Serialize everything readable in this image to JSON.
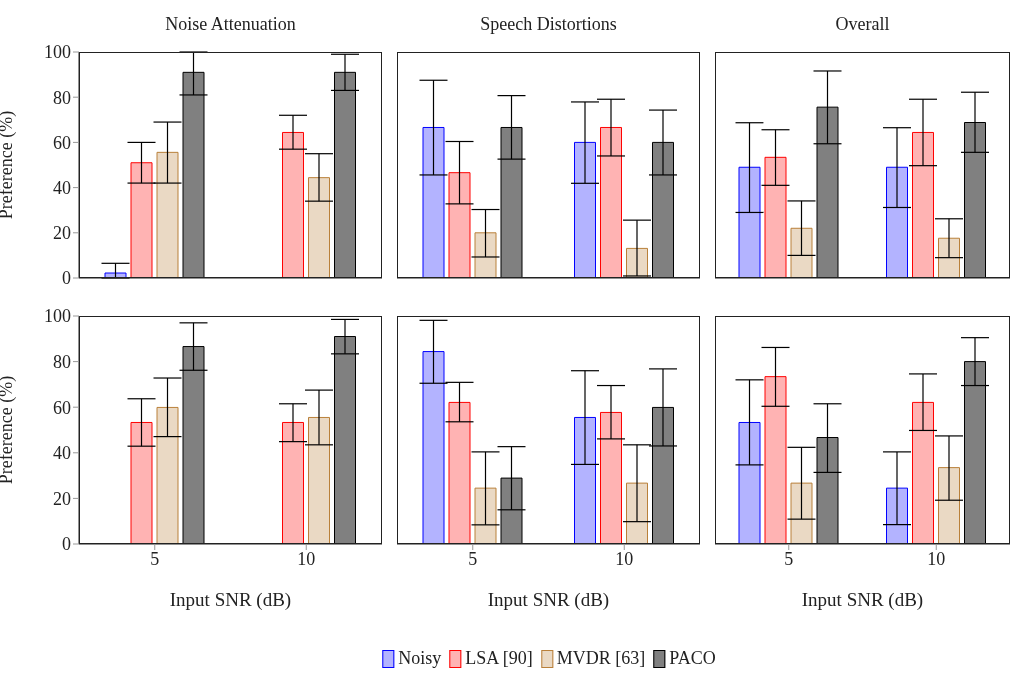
{
  "chart_data": [
    {
      "type": "bar",
      "title": "Noise Attenuation",
      "ylabel": "Preference (%)",
      "categories": [
        "5",
        "10"
      ],
      "ylim": [
        0,
        100
      ],
      "yticks": [
        0,
        20,
        40,
        60,
        80,
        100
      ],
      "tick_labels": "y",
      "series": [
        {
          "color": "#b3b3ff",
          "values": [
            2.2,
            0
          ],
          "errors": [
            [
              0,
              6.5
            ],
            null
          ]
        },
        {
          "color": "#ffb3b3",
          "values": [
            51,
            64.4
          ],
          "errors": [
            [
              42,
              60
            ],
            [
              57,
              72
            ]
          ]
        },
        {
          "color": "#ead9c4",
          "values": [
            55.6,
            44.4
          ],
          "errors": [
            [
              42,
              69
            ],
            [
              34,
              55
            ]
          ]
        },
        {
          "color": "#808080",
          "values": [
            91,
            91
          ],
          "errors": [
            [
              81,
              100
            ],
            [
              83,
              99
            ]
          ]
        }
      ]
    },
    {
      "type": "bar",
      "title": "Speech Distortions",
      "categories": [
        "5",
        "10"
      ],
      "ylim": [
        0,
        100
      ],
      "yticks": [
        0,
        20,
        40,
        60,
        80,
        100
      ],
      "tick_labels": false,
      "series": [
        {
          "color": "#b3b3ff",
          "values": [
            66.6,
            60
          ],
          "errors": [
            [
              45.6,
              87.5
            ],
            [
              41.9,
              77.9
            ]
          ]
        },
        {
          "color": "#ffb3b3",
          "values": [
            46.6,
            66.6
          ],
          "errors": [
            [
              32.8,
              60.4
            ],
            [
              54,
              79.1
            ]
          ]
        },
        {
          "color": "#ead9c4",
          "values": [
            20,
            13.1
          ],
          "errors": [
            [
              9.3,
              30.3
            ],
            [
              0.9,
              25.6
            ]
          ]
        },
        {
          "color": "#808080",
          "values": [
            66.6,
            60
          ],
          "errors": [
            [
              52.6,
              80.7
            ],
            [
              45.6,
              74.3
            ]
          ]
        }
      ]
    },
    {
      "type": "bar",
      "title": "Overall",
      "categories": [
        "5",
        "10"
      ],
      "ylim": [
        0,
        100
      ],
      "yticks": [
        0,
        20,
        40,
        60,
        80,
        100
      ],
      "tick_labels": false,
      "series": [
        {
          "color": "#b3b3ff",
          "values": [
            49,
            49
          ],
          "errors": [
            [
              29,
              68.7
            ],
            [
              31.2,
              66.5
            ]
          ]
        },
        {
          "color": "#ffb3b3",
          "values": [
            53.4,
            64.4
          ],
          "errors": [
            [
              41,
              65.6
            ],
            [
              49.7,
              79.1
            ]
          ]
        },
        {
          "color": "#ead9c4",
          "values": [
            22,
            17.6
          ],
          "errors": [
            [
              10,
              34.1
            ],
            [
              9,
              26.2
            ]
          ]
        },
        {
          "color": "#808080",
          "values": [
            75.6,
            68.8
          ],
          "errors": [
            [
              59.4,
              91.6
            ],
            [
              55.6,
              82.2
            ]
          ]
        }
      ]
    },
    {
      "type": "bar",
      "xlabel": "Input SNR (dB)",
      "ylabel": "Preference (%)",
      "categories": [
        "5",
        "10"
      ],
      "ylim": [
        0,
        100
      ],
      "yticks": [
        0,
        20,
        40,
        60,
        80,
        100
      ],
      "series": [
        {
          "color": "#b3b3ff",
          "values": [
            0,
            0
          ],
          "errors": [
            null,
            null
          ]
        },
        {
          "color": "#ffb3b3",
          "values": [
            53.3,
            53.3
          ],
          "errors": [
            [
              42.9,
              63.7
            ],
            [
              44.9,
              61.5
            ]
          ]
        },
        {
          "color": "#ead9c4",
          "values": [
            59.9,
            55.5
          ],
          "errors": [
            [
              47.1,
              72.8
            ],
            [
              43.5,
              67.5
            ]
          ]
        },
        {
          "color": "#808080",
          "values": [
            86.6,
            91
          ],
          "errors": [
            [
              76.2,
              97
            ],
            [
              83.4,
              98.5
            ]
          ]
        }
      ]
    },
    {
      "type": "bar",
      "xlabel": "Input SNR (dB)",
      "categories": [
        "5",
        "10"
      ],
      "ylim": [
        0,
        100
      ],
      "yticks": [
        0,
        20,
        40,
        60,
        80,
        100
      ],
      "tick_labels": "x",
      "legend": "bottom",
      "series": [
        {
          "name": "Noisy",
          "color": "#b3b3ff",
          "values": [
            84.4,
            55.5
          ],
          "errors": [
            [
              70.5,
              98.1
            ],
            [
              34.9,
              76
            ]
          ]
        },
        {
          "name": "LSA [90]",
          "color": "#ffb3b3",
          "values": [
            62.1,
            57.7
          ],
          "errors": [
            [
              53.6,
              70.9
            ],
            [
              46.1,
              69.5
            ]
          ]
        },
        {
          "name": "MVDR [63]",
          "color": "#ead9c4",
          "values": [
            24.5,
            26.7
          ],
          "errors": [
            [
              8.4,
              40.4
            ],
            [
              9.8,
              43.5
            ]
          ]
        },
        {
          "name": "PACO",
          "color": "#808080",
          "values": [
            28.9,
            59.9
          ],
          "errors": [
            [
              15,
              42.7
            ],
            [
              43,
              76.8
            ]
          ]
        }
      ]
    },
    {
      "type": "bar",
      "xlabel": "Input SNR (dB)",
      "categories": [
        "5",
        "10"
      ],
      "ylim": [
        0,
        100
      ],
      "yticks": [
        0,
        20,
        40,
        60,
        80,
        100
      ],
      "tick_labels": "x",
      "series": [
        {
          "color": "#b3b3ff",
          "values": [
            53.3,
            24.5
          ],
          "errors": [
            [
              34.7,
              72
            ],
            [
              8.5,
              40.4
            ]
          ]
        },
        {
          "color": "#ffb3b3",
          "values": [
            73.4,
            62.1
          ],
          "errors": [
            [
              60.4,
              86.2
            ],
            [
              49.8,
              74.6
            ]
          ]
        },
        {
          "color": "#ead9c4",
          "values": [
            26.7,
            33.5
          ],
          "errors": [
            [
              10.9,
              42.4
            ],
            [
              19.2,
              47.4
            ]
          ]
        },
        {
          "color": "#808080",
          "values": [
            46.7,
            80
          ],
          "errors": [
            [
              31.4,
              61.5
            ],
            [
              69.5,
              90.5
            ]
          ]
        }
      ]
    }
  ]
}
